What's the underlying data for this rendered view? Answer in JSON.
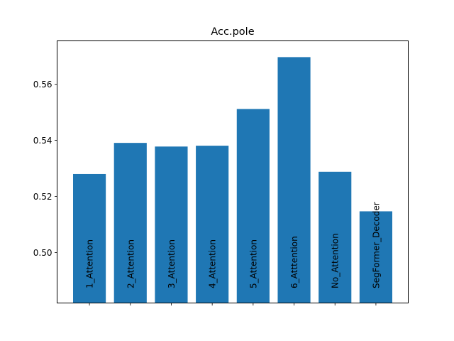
{
  "chart_data": {
    "type": "bar",
    "title": "Acc.pole",
    "xlabel": "",
    "ylabel": "",
    "categories": [
      "1_Attention",
      "2_Attention",
      "3_Attention",
      "4_Attention",
      "5_Attention",
      "6_Atttention",
      "No_Attention",
      "SegFormer_Decoder"
    ],
    "values": [
      0.528,
      0.5391,
      0.5378,
      0.5381,
      0.5512,
      0.5697,
      0.5288,
      0.5147
    ],
    "ylim": [
      0.482,
      0.5755
    ],
    "yticks": [
      0.5,
      0.52,
      0.54,
      0.56
    ],
    "ytick_labels": [
      "0.50",
      "0.52",
      "0.54",
      "0.56"
    ],
    "grid": false,
    "legend": "none",
    "bar_color": "#1f77b4"
  }
}
